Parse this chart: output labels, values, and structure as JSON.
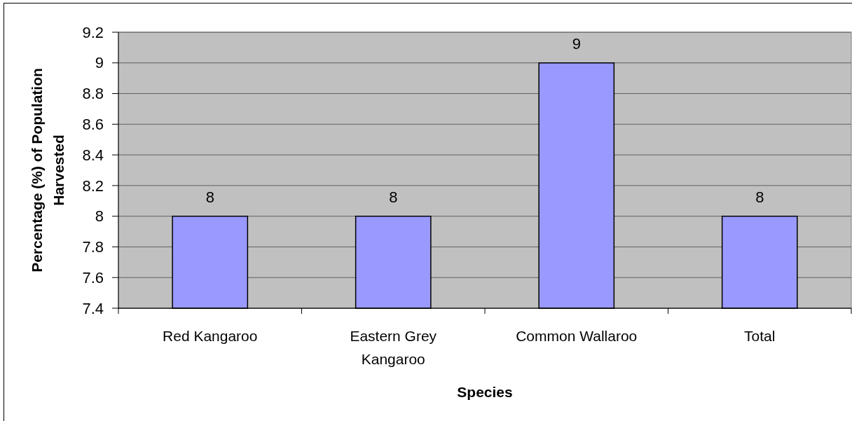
{
  "chart_data": {
    "type": "bar",
    "xlabel": "Species",
    "ylabel": "Percentage (%) of Population Harvested",
    "categories": [
      "Red Kangaroo",
      "Eastern Grey Kangaroo",
      "Common Wallaroo",
      "Total"
    ],
    "values": [
      8,
      8,
      9,
      8
    ],
    "color": "#9999ff",
    "ylim": [
      7.4,
      9.2
    ],
    "yticks": [
      7.4,
      7.6,
      7.8,
      8,
      8.2,
      8.4,
      8.6,
      8.8,
      9,
      9.2
    ],
    "grid": "y",
    "data_labels": true
  }
}
